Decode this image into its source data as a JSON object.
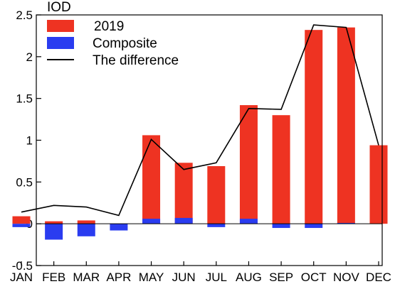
{
  "chart_data": {
    "type": "bar",
    "title": "IOD",
    "categories": [
      "JAN",
      "FEB",
      "MAR",
      "APR",
      "MAY",
      "JUN",
      "JUL",
      "AUG",
      "SEP",
      "OCT",
      "NOV",
      "DEC"
    ],
    "ylim": [
      -0.5,
      2.5
    ],
    "yticks": [
      "-0.5",
      "0",
      "0.5",
      "1",
      "1.5",
      "2",
      "2.5"
    ],
    "ytick_values": [
      -0.5,
      0,
      0.5,
      1,
      1.5,
      2,
      2.5
    ],
    "grid": false,
    "legend_placement": "top-left",
    "series": [
      {
        "name": "2019",
        "kind": "bar",
        "color": "#ee3322",
        "values": [
          0.09,
          0.03,
          0.04,
          0.0,
          1.06,
          0.73,
          0.69,
          1.42,
          1.3,
          2.32,
          2.35,
          0.94
        ]
      },
      {
        "name": "Composite",
        "kind": "bar",
        "color": "#2a3cf0",
        "values": [
          -0.04,
          -0.19,
          -0.15,
          -0.08,
          0.06,
          0.07,
          -0.04,
          0.06,
          -0.05,
          -0.05,
          0.01,
          0.0
        ]
      },
      {
        "name": "The difference",
        "kind": "line",
        "color": "#000000",
        "values": [
          0.14,
          0.22,
          0.2,
          0.1,
          1.01,
          0.65,
          0.73,
          1.38,
          1.37,
          2.38,
          2.35,
          0.94
        ]
      }
    ]
  }
}
